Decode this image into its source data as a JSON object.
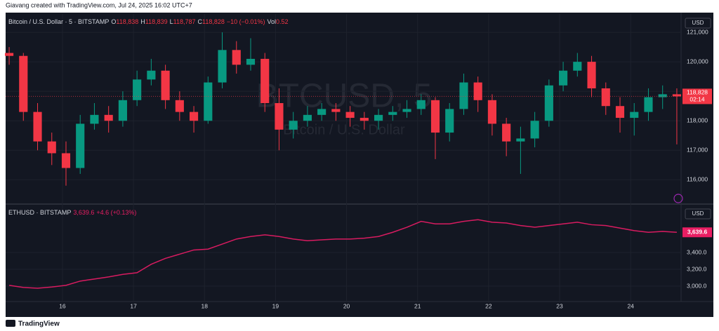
{
  "header": "Giavang created with TradingView.com, Jul 24, 2025 16:02 UTC+7",
  "footer": "TradingView",
  "chart_data": [
    {
      "type": "candlestick",
      "legend": {
        "name": "Bitcoin / U.S. Dollar · 5 · BITSTAMP",
        "items": [
          {
            "label": "O",
            "value": "118,838"
          },
          {
            "label": "H",
            "value": "118,839"
          },
          {
            "label": "L",
            "value": "118,787"
          },
          {
            "label": "C",
            "value": "118,828"
          },
          {
            "value": "−10 (−0.01%)"
          },
          {
            "label": "Vol",
            "value": "0.52"
          }
        ],
        "color": "#f23645"
      },
      "watermark": [
        "BTCUSD, 5",
        "Bitcoin / U.S. Dollar"
      ],
      "currency": "USD",
      "last_label": "118,828",
      "countdown": "02:14",
      "last_color": "#f23645",
      "up_color": "#089981",
      "down_color": "#f23645",
      "x": [
        15.25,
        15.45,
        15.65,
        15.85,
        16.05,
        16.25,
        16.45,
        16.65,
        16.85,
        17.05,
        17.25,
        17.45,
        17.65,
        17.85,
        18.05,
        18.25,
        18.45,
        18.65,
        18.85,
        19.05,
        19.25,
        19.45,
        19.65,
        19.85,
        20.05,
        20.25,
        20.45,
        20.65,
        20.85,
        21.05,
        21.25,
        21.45,
        21.65,
        21.85,
        22.05,
        22.25,
        22.45,
        22.65,
        22.85,
        23.05,
        23.25,
        23.45,
        23.65,
        23.85,
        24.05,
        24.25,
        24.45,
        24.65
      ],
      "open": [
        120300,
        120200,
        118300,
        117300,
        116900,
        116400,
        117900,
        118200,
        118000,
        118700,
        119400,
        119700,
        118700,
        118300,
        118000,
        119300,
        120400,
        119900,
        120100,
        118600,
        117700,
        118000,
        118200,
        118400,
        118300,
        118100,
        118000,
        118200,
        118300,
        118400,
        118700,
        117600,
        118400,
        119300,
        118700,
        117900,
        117300,
        117400,
        118000,
        119200,
        119700,
        120000,
        119100,
        118500,
        118100,
        118300,
        118800,
        118900
      ],
      "high": [
        120500,
        120300,
        118600,
        117600,
        117300,
        118200,
        118600,
        118500,
        119000,
        119700,
        120100,
        119900,
        119000,
        118500,
        119500,
        121000,
        120700,
        120800,
        120300,
        119100,
        118300,
        118500,
        118600,
        118600,
        118500,
        118300,
        118400,
        118500,
        118700,
        118900,
        118800,
        118600,
        119600,
        119500,
        118900,
        118100,
        117800,
        118300,
        119400,
        120000,
        120300,
        120200,
        119300,
        118800,
        118600,
        119100,
        119200,
        119100
      ],
      "low": [
        119900,
        118000,
        117000,
        116500,
        115800,
        116200,
        117700,
        117600,
        117800,
        118500,
        119200,
        118400,
        118000,
        117600,
        117900,
        119100,
        119600,
        119700,
        118300,
        117000,
        117400,
        117800,
        118000,
        118000,
        117800,
        117700,
        117700,
        118000,
        118100,
        118200,
        116700,
        117300,
        118200,
        118300,
        117500,
        116800,
        116200,
        117100,
        117800,
        119000,
        119500,
        118800,
        118200,
        117600,
        117500,
        118000,
        118400,
        117200
      ],
      "close": [
        120200,
        118300,
        117300,
        116900,
        116400,
        117900,
        118200,
        118000,
        118700,
        119400,
        119700,
        118700,
        118300,
        118000,
        119300,
        120400,
        119900,
        120100,
        118600,
        117700,
        118000,
        118200,
        118400,
        118300,
        118100,
        118000,
        118200,
        118300,
        118400,
        118700,
        117600,
        118400,
        119300,
        118700,
        117900,
        117300,
        117400,
        118000,
        119200,
        119700,
        120000,
        119100,
        118500,
        118100,
        118300,
        118800,
        118900,
        118828
      ],
      "xlim": [
        15.2,
        24.71
      ],
      "ylim": [
        115200,
        121620
      ],
      "yticks": [
        {
          "value": 116000,
          "label": "116,000"
        },
        {
          "value": 117000,
          "label": "117,000"
        },
        {
          "value": 118000,
          "label": "118,000"
        },
        {
          "value": 119000,
          "label": "119,000"
        },
        {
          "value": 120000,
          "label": "120,000"
        },
        {
          "value": 121000,
          "label": "121,000"
        }
      ],
      "grid": true
    },
    {
      "type": "line",
      "legend": {
        "name": "ETHUSD · BITSTAMP",
        "items": [
          {
            "value": "3,639.6"
          },
          {
            "value": "+4.6 (+0.13%)"
          }
        ],
        "color": "#e91e63"
      },
      "currency": "USD",
      "last_label": "3,639.6",
      "last_color": "#e91e63",
      "color": "#d81b60",
      "x": [
        15.25,
        15.45,
        15.65,
        15.85,
        16.05,
        16.25,
        16.45,
        16.65,
        16.85,
        17.05,
        17.25,
        17.45,
        17.65,
        17.85,
        18.05,
        18.25,
        18.45,
        18.65,
        18.85,
        19.05,
        19.25,
        19.45,
        19.65,
        19.85,
        20.05,
        20.25,
        20.45,
        20.65,
        20.85,
        21.05,
        21.25,
        21.45,
        21.65,
        21.85,
        22.05,
        22.25,
        22.45,
        22.65,
        22.85,
        23.05,
        23.25,
        23.45,
        23.65,
        23.85,
        24.05,
        24.25,
        24.45,
        24.65
      ],
      "values": [
        3010,
        2985,
        2975,
        2990,
        3010,
        3060,
        3085,
        3110,
        3140,
        3160,
        3260,
        3330,
        3380,
        3430,
        3440,
        3500,
        3560,
        3590,
        3610,
        3590,
        3560,
        3540,
        3550,
        3560,
        3560,
        3570,
        3590,
        3640,
        3700,
        3770,
        3740,
        3740,
        3770,
        3790,
        3760,
        3750,
        3720,
        3700,
        3720,
        3740,
        3760,
        3730,
        3720,
        3690,
        3660,
        3640,
        3650,
        3639.6
      ],
      "xlim": [
        15.2,
        24.71
      ],
      "xticks": [
        16,
        17,
        18,
        19,
        20,
        21,
        22,
        23,
        24
      ],
      "ylim": [
        2817,
        3967
      ],
      "yticks": [
        {
          "value": 3000,
          "label": "3,000.0"
        },
        {
          "value": 3200,
          "label": "3,200.0"
        },
        {
          "value": 3400,
          "label": "3,400.0"
        }
      ],
      "grid": true
    }
  ]
}
